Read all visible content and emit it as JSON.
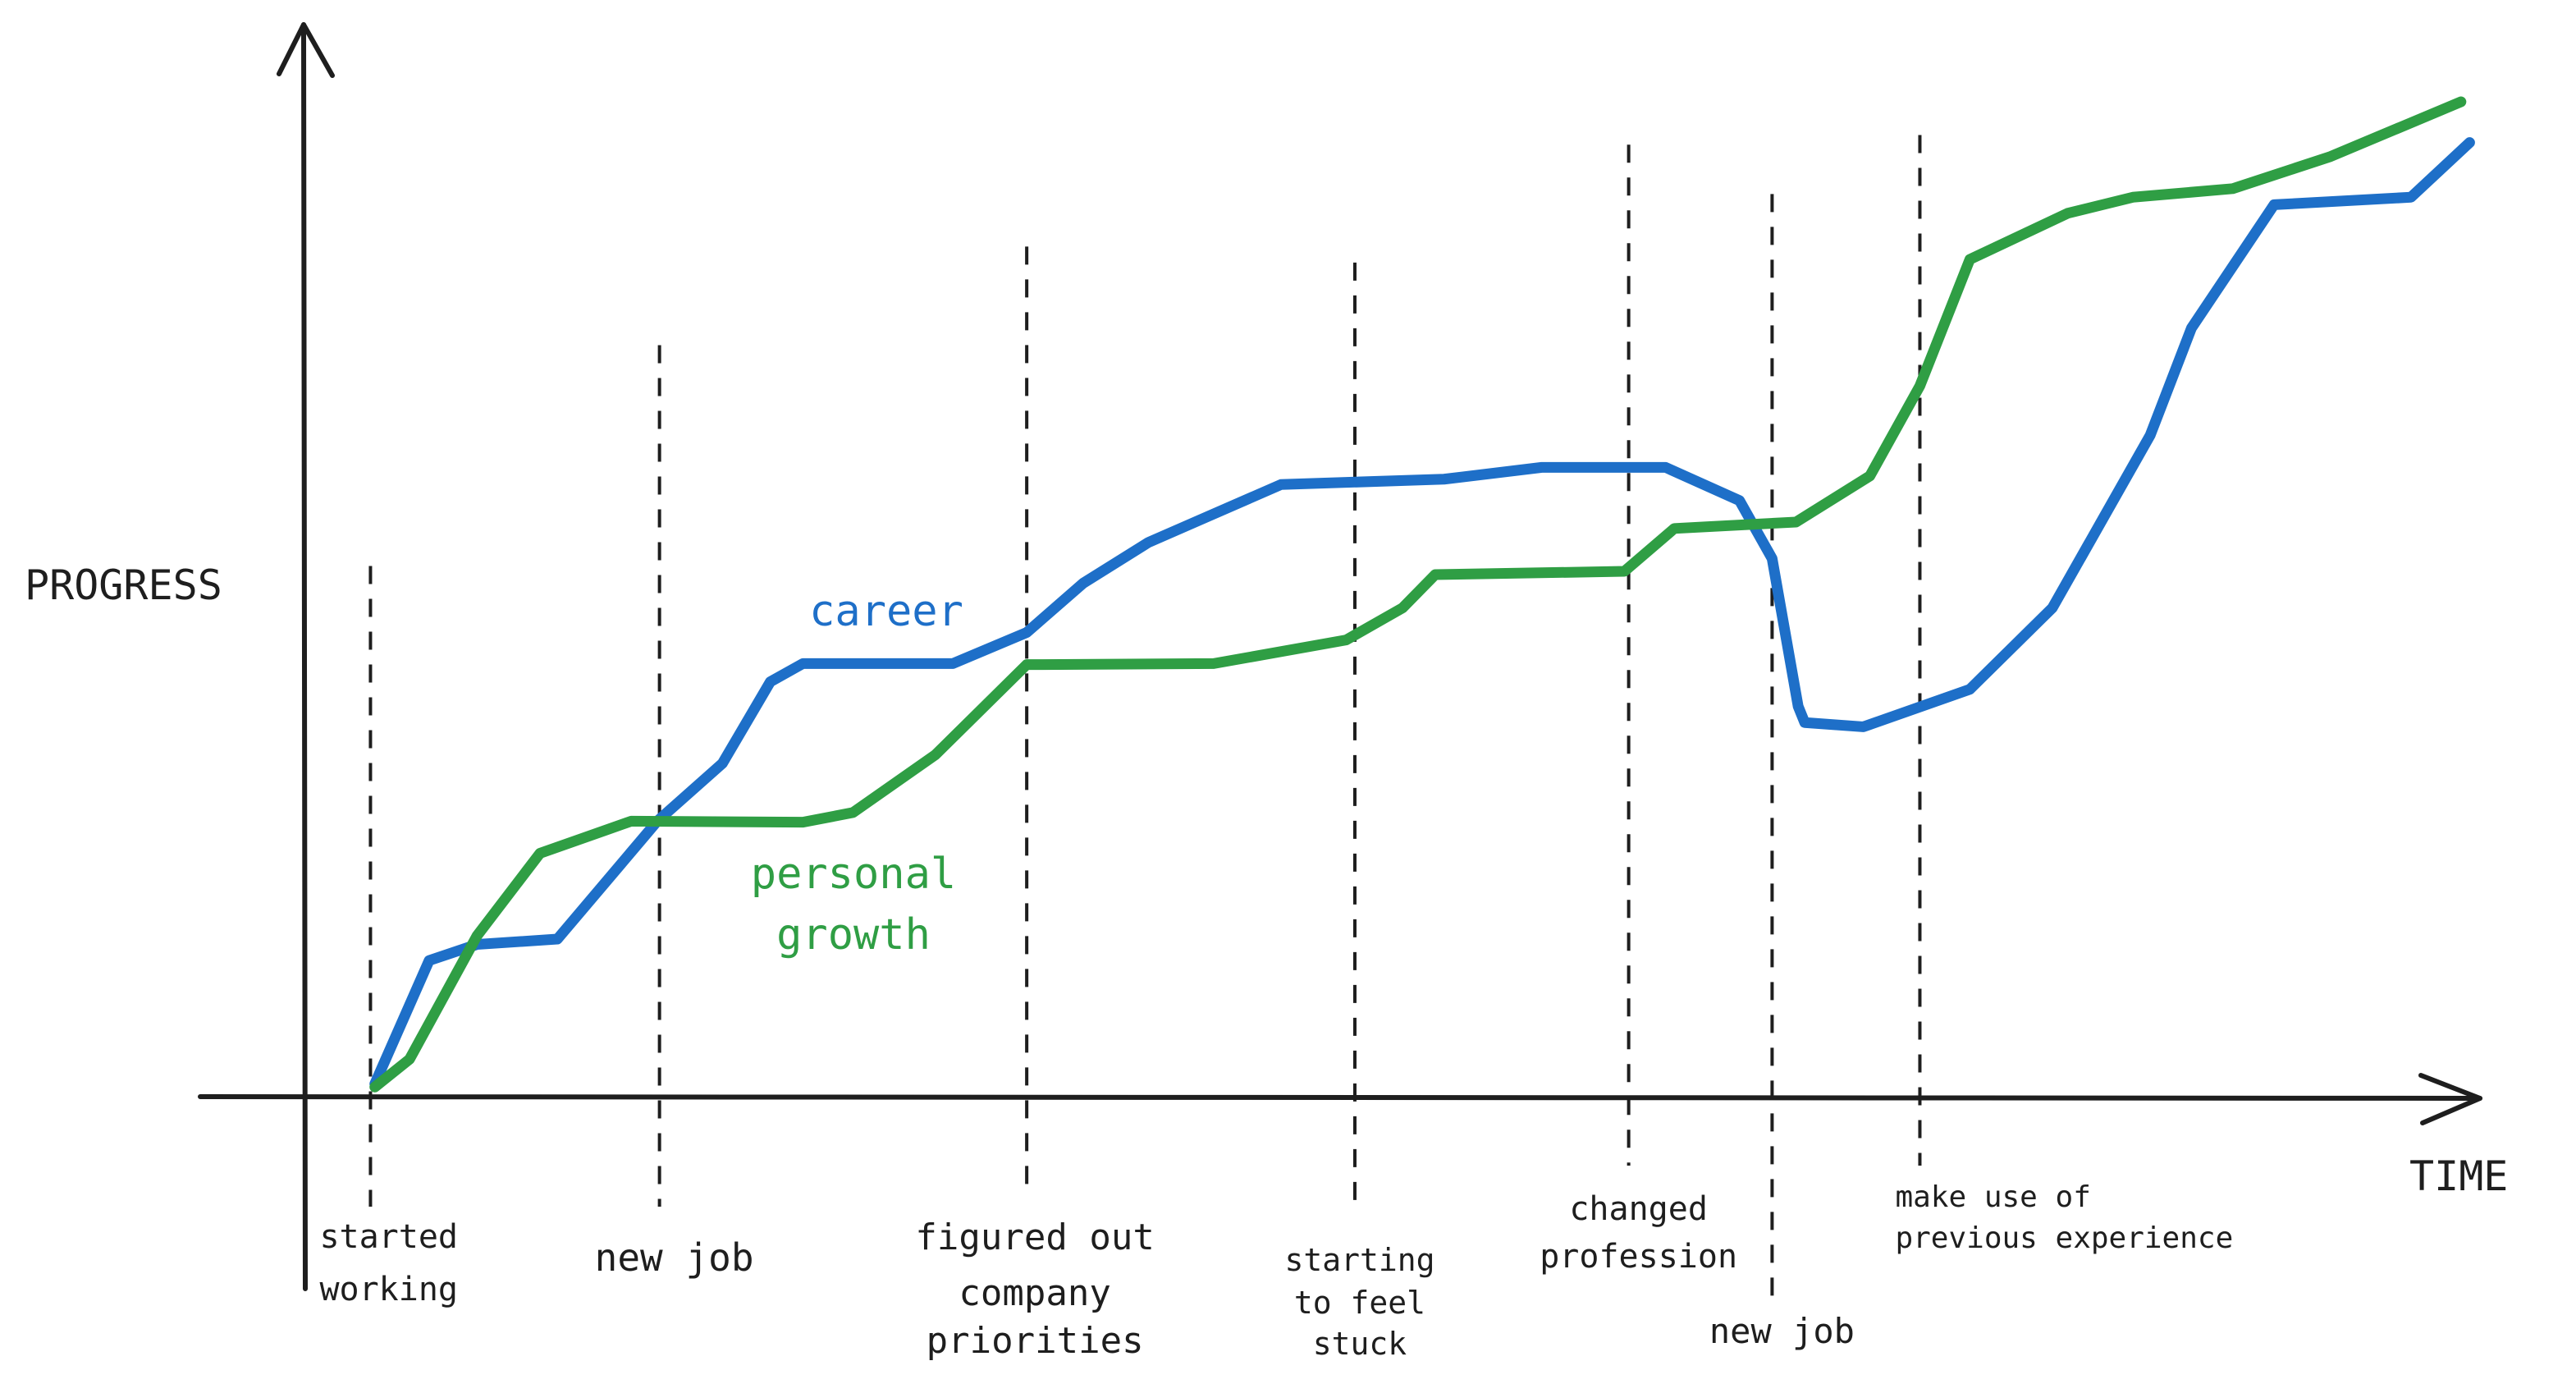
{
  "chart_data": {
    "type": "line",
    "y_label": "PROGRESS",
    "x_label": "TIME",
    "xlim": [
      0,
      100
    ],
    "ylim": [
      0,
      100
    ],
    "series": [
      {
        "name": "career",
        "color": "#1e6fc8",
        "x": [
          3.2,
          5.7,
          7.9,
          11.6,
          16.2,
          19.2,
          21.4,
          22.9,
          29.8,
          33.2,
          35.8,
          38.8,
          44.9,
          52.4,
          56.9,
          62.6,
          66.0,
          67.5,
          68.7,
          69.0,
          71.7,
          76.6,
          80.4,
          84.9,
          86.8,
          90.6,
          96.9,
          99.6
        ],
        "values": [
          1.2,
          12.7,
          14.2,
          14.7,
          25.7,
          31.1,
          38.7,
          40.4,
          40.4,
          43.3,
          47.9,
          51.7,
          57.1,
          57.6,
          58.7,
          58.7,
          55.6,
          50.2,
          36.4,
          34.9,
          34.5,
          38.0,
          45.6,
          61.7,
          71.7,
          83.2,
          83.9,
          89.0
        ]
      },
      {
        "name": [
          "personal",
          "growth"
        ],
        "color": "#2f9e44",
        "x": [
          3.2,
          4.8,
          7.9,
          10.8,
          15.0,
          22.9,
          25.2,
          29.0,
          33.2,
          41.8,
          47.9,
          50.5,
          52.0,
          60.7,
          63.0,
          68.6,
          72.0,
          74.3,
          76.6,
          81.1,
          84.1,
          88.7,
          93.2,
          99.2
        ],
        "values": [
          0.9,
          3.5,
          15.0,
          22.7,
          25.7,
          25.6,
          26.5,
          31.9,
          40.3,
          40.4,
          42.6,
          45.6,
          48.7,
          49.0,
          53.0,
          53.6,
          57.9,
          66.3,
          78.1,
          82.4,
          83.9,
          84.7,
          87.7,
          92.8
        ]
      }
    ],
    "events": [
      {
        "x": 3.0,
        "y": 49.5,
        "label": [
          "started",
          "working"
        ]
      },
      {
        "x": 16.3,
        "y": 70.1,
        "label": [
          "new job"
        ]
      },
      {
        "x": 33.2,
        "y": 79.3,
        "label": [
          "figured out",
          "company",
          "priorities"
        ]
      },
      {
        "x": 48.3,
        "y": 77.8,
        "label": [
          "starting",
          "to feel",
          "stuck"
        ]
      },
      {
        "x": 60.9,
        "y": 88.8,
        "label": [
          "changed",
          "profession"
        ]
      },
      {
        "x": 67.5,
        "y": 84.2,
        "label": [
          "new job"
        ]
      },
      {
        "x": 74.3,
        "y": 89.7,
        "label": [
          "make use of",
          "previous experience"
        ]
      }
    ]
  }
}
